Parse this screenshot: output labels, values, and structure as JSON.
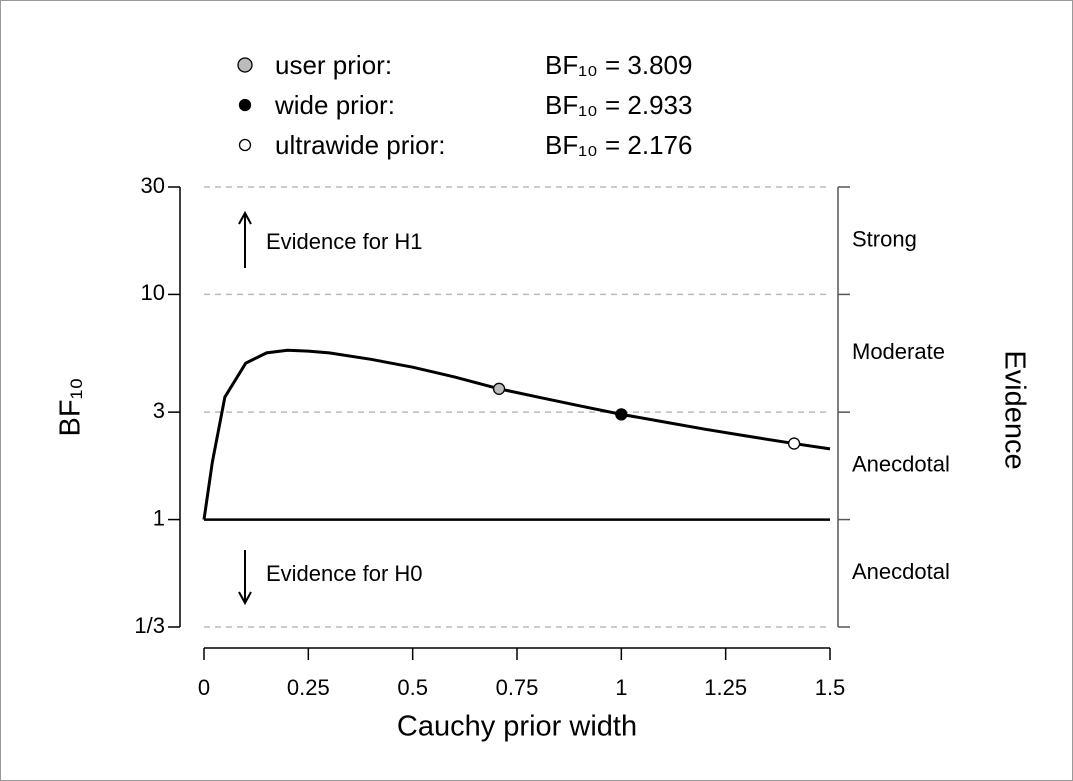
{
  "chart_data": {
    "type": "line",
    "xlabel": "Cauchy prior width",
    "ylabel": "BF₁₀",
    "y2label": "Evidence",
    "x": [
      0,
      0.02,
      0.05,
      0.1,
      0.15,
      0.2,
      0.25,
      0.3,
      0.4,
      0.5,
      0.6,
      0.707,
      0.8,
      0.9,
      1,
      1.1,
      1.2,
      1.3,
      1.414,
      1.5
    ],
    "values": [
      1,
      1.8,
      3.5,
      4.95,
      5.5,
      5.65,
      5.6,
      5.5,
      5.15,
      4.75,
      4.3,
      3.809,
      3.5,
      3.2,
      2.933,
      2.72,
      2.52,
      2.35,
      2.176,
      2.06
    ],
    "color": "#000000",
    "points": [
      {
        "name": "user prior:",
        "x": 0.707,
        "value": 3.809,
        "value_label": "BF₁₀ = 3.809",
        "color": "#bbbbbb"
      },
      {
        "name": "wide prior:",
        "x": 1,
        "value": 2.933,
        "value_label": "BF₁₀ = 2.933",
        "color": "#000000"
      },
      {
        "name": "ultrawide prior:",
        "x": 1.414,
        "value": 2.176,
        "value_label": "BF₁₀ = 2.176",
        "color": "#ffffff"
      }
    ],
    "reference_line": 1,
    "xlim": [
      0,
      1.5
    ],
    "xticks": [
      0,
      0.25,
      0.5,
      0.75,
      1,
      1.25,
      1.5
    ],
    "ylim": [
      {
        "value": 0.3333,
        "label": "1/3"
      },
      30
    ],
    "yticks": [
      30,
      10,
      3,
      1,
      {
        "value": 0.3333,
        "label": "1/3"
      }
    ],
    "log_scale": true,
    "grid": true,
    "evidence_labels": [
      "Strong",
      "Moderate",
      "Anecdotal",
      "Anecdotal"
    ],
    "annotations": [
      "Evidence for H1",
      "Evidence for H0"
    ]
  }
}
